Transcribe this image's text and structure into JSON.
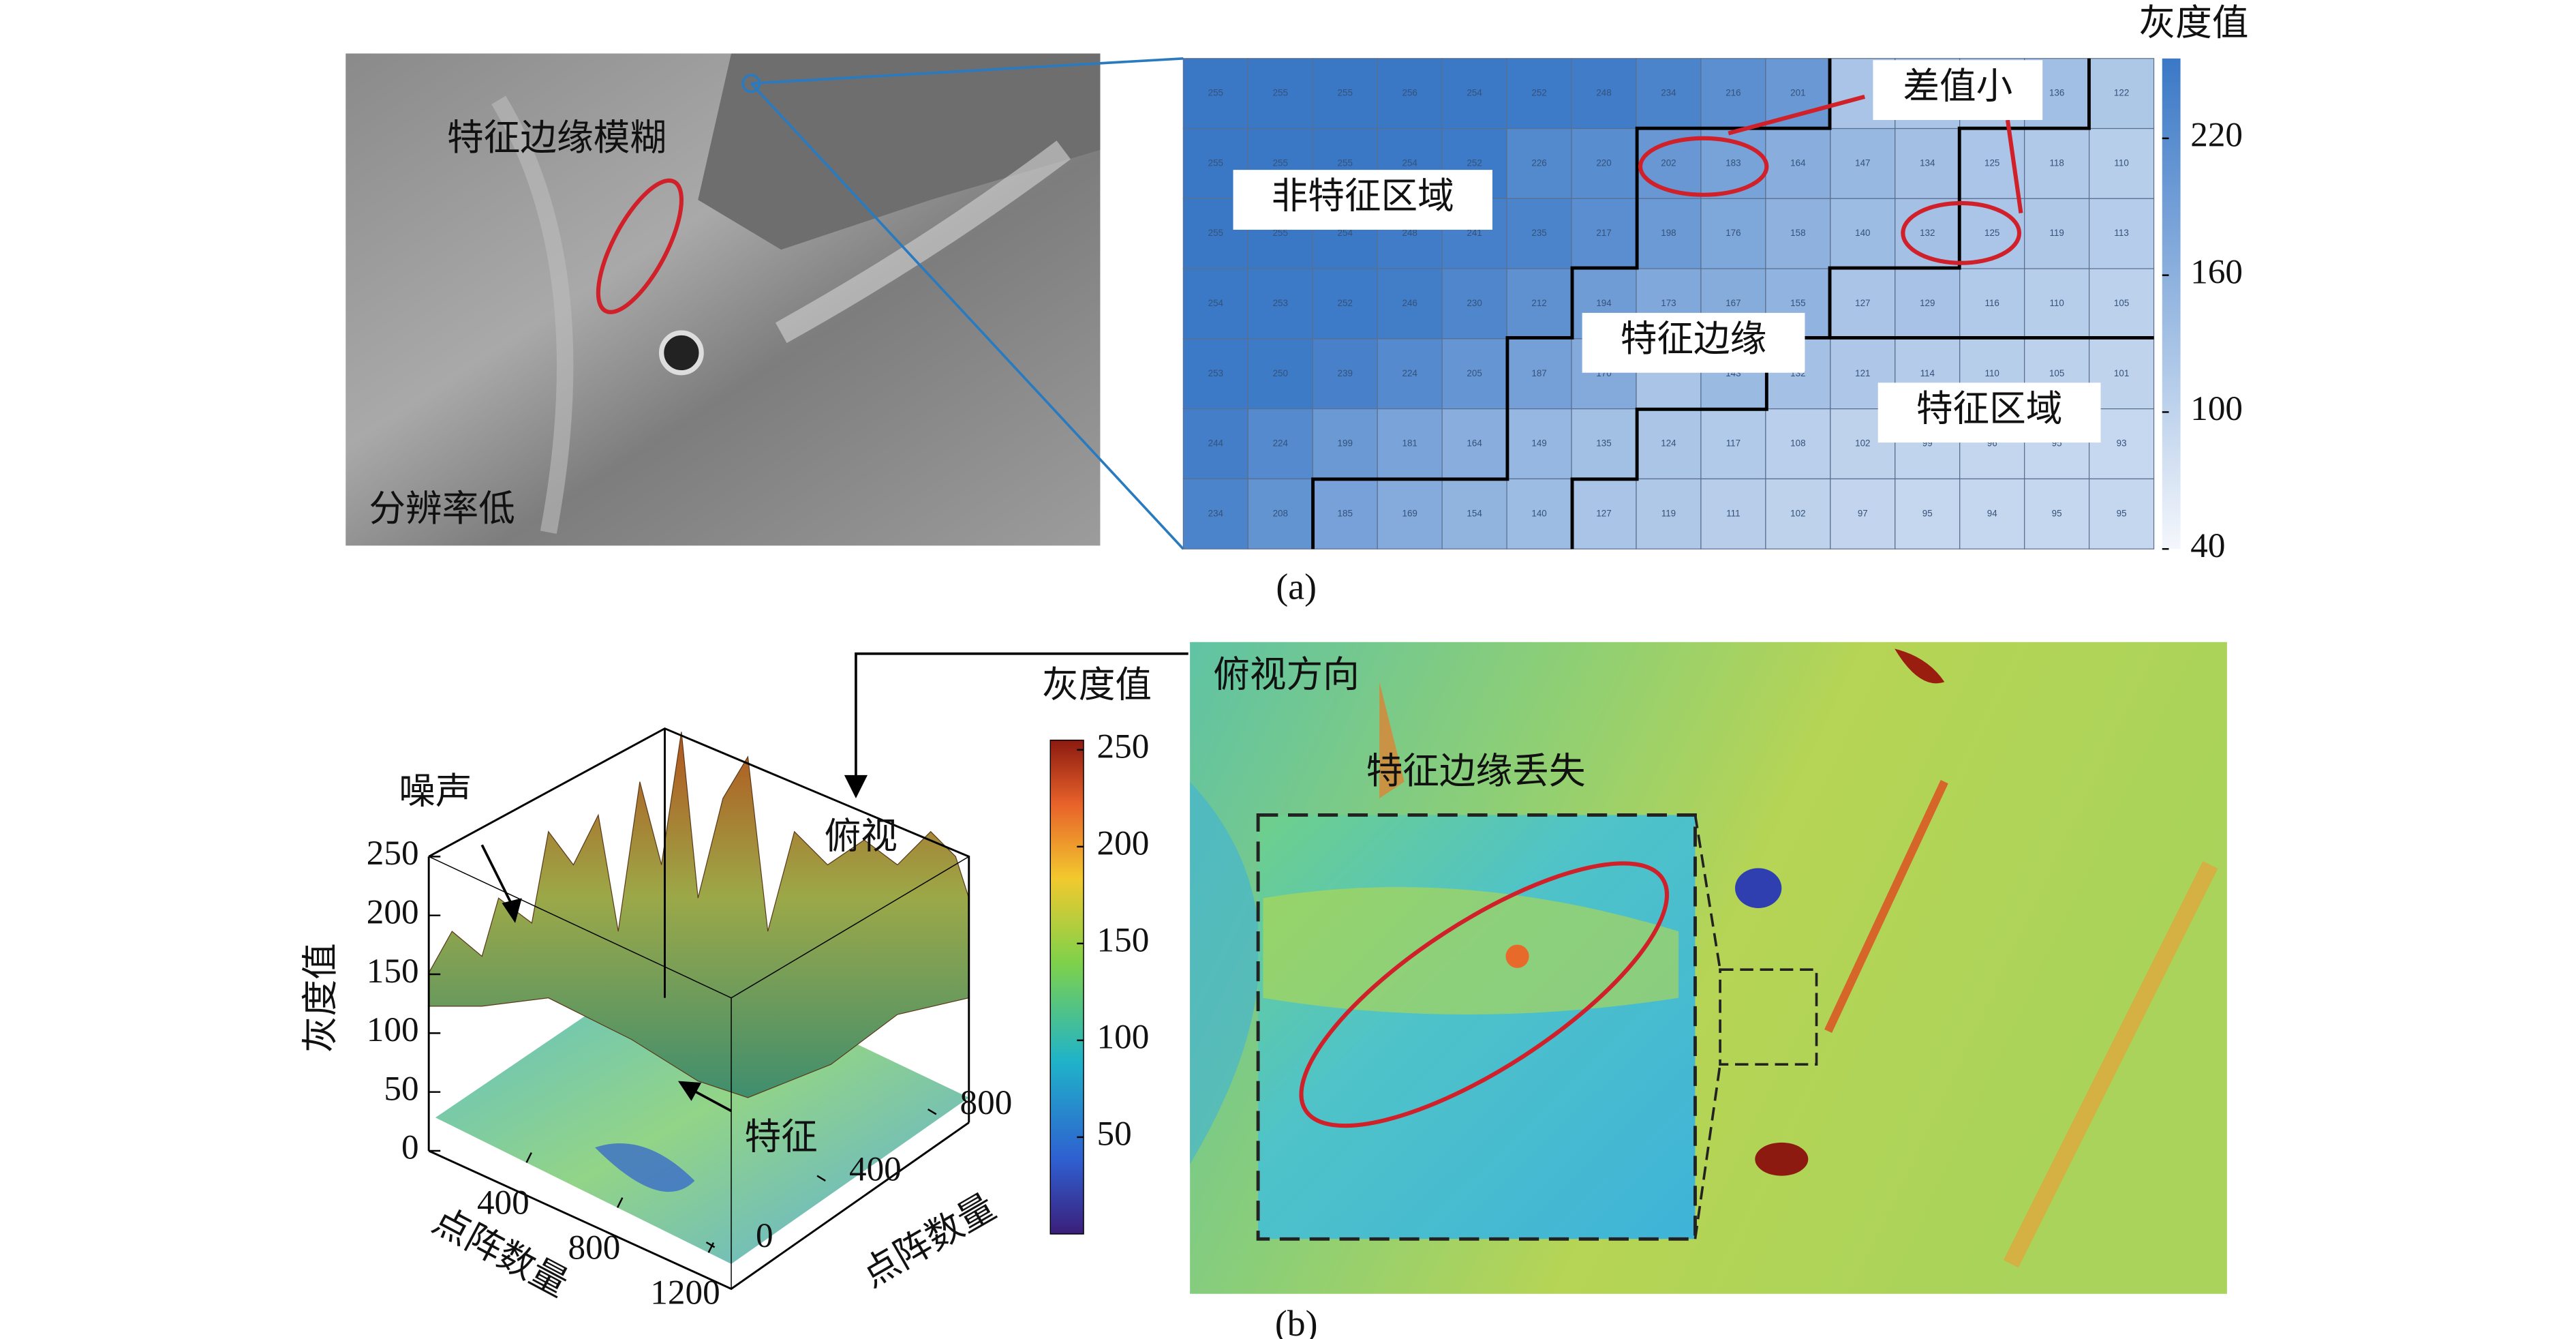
{
  "panel_a": {
    "caption": "(a)",
    "image_labels": [
      "特征边缘模糊",
      "分辨率低"
    ],
    "grid": {
      "rows": [
        [
          255,
          255,
          255,
          256,
          254,
          252,
          248,
          234,
          216,
          201,
          null,
          null,
          null,
          136,
          122
        ],
        [
          255,
          255,
          255,
          254,
          252,
          226,
          220,
          202,
          183,
          164,
          147,
          134,
          125,
          118,
          110
        ],
        [
          255,
          255,
          254,
          248,
          241,
          235,
          217,
          198,
          176,
          158,
          140,
          132,
          125,
          119,
          113
        ],
        [
          254,
          253,
          252,
          246,
          230,
          212,
          194,
          173,
          167,
          155,
          127,
          129,
          116,
          110,
          105
        ],
        [
          253,
          250,
          239,
          224,
          205,
          187,
          170,
          null,
          143,
          132,
          121,
          114,
          110,
          105,
          101
        ],
        [
          244,
          224,
          199,
          181,
          164,
          149,
          135,
          124,
          117,
          108,
          102,
          99,
          96,
          95,
          93
        ],
        [
          234,
          208,
          185,
          169,
          154,
          140,
          127,
          119,
          111,
          102,
          97,
          95,
          94,
          95,
          95
        ]
      ]
    },
    "region_labels": [
      "差值小",
      "非特征区域",
      "特征边缘",
      "特征区域"
    ],
    "colorbar": {
      "label": "灰度值",
      "lim": [
        40,
        255
      ],
      "ticks": [
        40,
        100,
        160,
        220
      ]
    }
  },
  "panel_b": {
    "caption": "(b)",
    "surface": {
      "zlabel": "灰度值",
      "xlabel": "点阵数量",
      "ylabel": "点阵数量",
      "zlim": [
        0,
        250
      ],
      "zticks": [
        0,
        50,
        100,
        150,
        200,
        250
      ],
      "xlim": [
        0,
        1300
      ],
      "xticks": [
        400,
        800,
        1200
      ],
      "ylim": [
        0,
        900
      ],
      "yticks": [
        0,
        400,
        800
      ],
      "annotations": [
        "噪声",
        "俯视",
        "特征"
      ]
    },
    "colorbar": {
      "label": "灰度值",
      "lim": [
        0,
        255
      ],
      "ticks": [
        50,
        100,
        150,
        200,
        250
      ]
    },
    "view_labels": [
      "俯视方向",
      "特征边缘丢失"
    ]
  }
}
